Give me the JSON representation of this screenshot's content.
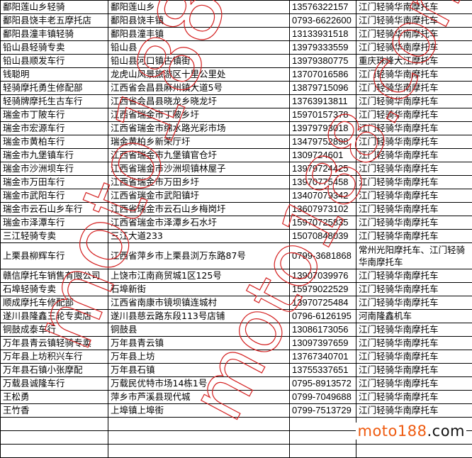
{
  "rows": [
    [
      "鄱阳莲山乡轻骑",
      "鄱阳莲山乡",
      "13576322157",
      "江门轻骑华南摩托车"
    ],
    [
      "鄱阳县饶丰老五摩托店",
      "鄱阳县饶丰镇",
      "0793-6622600",
      "江门轻骑华南摩托车"
    ],
    [
      "鄱阳县潼丰镇轻骑",
      "鄱阳县潼丰镇",
      "13133931518",
      "江门轻骑华南摩托车"
    ],
    [
      "铅山县轻骑专卖",
      "铅山县",
      "13979333559",
      "江门轻骑华南摩托车"
    ],
    [
      "铅山县顺发车行",
      "铅山县河口镇古镇街",
      "13979380775",
      "重庆珠峰大江摩托车"
    ],
    [
      "钱聪明",
      "龙虎山风景旅游区十里公里处",
      "13707016586",
      "江门轻骑华南摩托车"
    ],
    [
      "轻骑摩托勇生修配部",
      "江西省会昌县麻州镇大道5号",
      "13879715096",
      "江门轻骑华南摩托车"
    ],
    [
      "轻骑牌摩托生古车行",
      "江西省会昌县晓龙乡晓龙圩",
      "13763913811",
      "江门轻骑华南摩托车"
    ],
    [
      "瑞金市丁陂车行",
      "江西省瑞金市丁陂乡圩",
      "15970157378",
      "江门轻骑华南摩托车"
    ],
    [
      "瑞金市宏源车行",
      "江西省瑞金市绵水路光彩市场",
      "13979793018",
      "江门轻骑华南摩托车"
    ],
    [
      "瑞金市黄柏车行",
      "瑞金黄柏乡新荣厅圩",
      "13479752898",
      "江门轻骑华南摩托车"
    ],
    [
      "瑞金市九堡镇车行",
      "江西省瑞金市九堡镇官仓圩",
      "1309724601",
      "江门轻骑华南摩托车"
    ],
    [
      "瑞金市沙洲坝车行",
      "江西省瑞金市沙洲坝镇林屋子",
      "13979724425",
      "江门轻骑华南摩托车"
    ],
    [
      "瑞金市万田车行",
      "江西省瑞金市万田乡圩",
      "13970775458",
      "江门轻骑华南摩托车"
    ],
    [
      "瑞金市武阳车行",
      "江西省瑞金市武阳镇圩",
      "13407079342",
      "江门轻骑华南摩托车"
    ],
    [
      "瑞金市云石山乡车行",
      "江西省瑞金市云石山乡梅岗圩",
      "13607973102",
      "江门轻骑华南摩托车"
    ],
    [
      "瑞金市泽潭车行",
      "江西省瑞金市泽潭乡石水圩",
      "15970725835",
      "江门轻骑华南摩托车"
    ],
    [
      "三江轻骑专卖",
      "三江大道233",
      "15070848039",
      "江门轻骑华南摩托车"
    ],
    [
      "上栗县柳辉车行",
      "江西省萍乡市上栗县浏万东路87号",
      "0799-3681868",
      "常州光阳摩托车、江门轻骑华南摩托车"
    ],
    [
      "赣信摩托车销售有限公司",
      "上饶市江南商贸城1区125号",
      "13907039976",
      "江门轻骑华南摩托车"
    ],
    [
      "石埠轻骑专卖",
      "石埠新街",
      "15979022529",
      "江门轻骑华南摩托车"
    ],
    [
      "顺成摩托车修配部",
      "江西省南康市镜坝镇连城村",
      "13970725484",
      "江门轻骑华南摩托车"
    ],
    [
      "遂川县隆鑫三轮专卖店",
      "遂川县慈云路东段113号店铺",
      "0796-6126195",
      "河南隆鑫机车"
    ],
    [
      "铜鼓成泰车行",
      "铜鼓县",
      "13086173056",
      "江门轻骑华南摩托车"
    ],
    [
      "万年县青云镇轻骑专卖",
      "万年县青云镇",
      "13097397659",
      "江门轻骑华南摩托车"
    ],
    [
      "万年县上坊积兴车行",
      "万年县上坊",
      "13767340701",
      "江门轻骑华南摩托车"
    ],
    [
      "万年县石镇小张摩配",
      "万年县石镇",
      "13755337651",
      "江门轻骑华南摩托车"
    ],
    [
      "万载县诚隆车行",
      "万载民优特市场14栋1号",
      "0795-8913572",
      "江门轻骑华南摩托车"
    ],
    [
      "王松勇",
      "萍乡市芦溪县现代城",
      "0799-7049688",
      "江门轻骑华南摩托车"
    ],
    [
      "王竹香",
      "上埠镇上埠街",
      "0799-7513729",
      "江门轻骑华南摩托车"
    ],
    [
      "",
      "",
      "",
      ""
    ],
    [
      "",
      "",
      "",
      ""
    ],
    [
      "",
      "",
      "",
      ""
    ]
  ],
  "watermark": "moto188.com",
  "logo": {
    "part1": "moto188",
    "part2": ".com",
    "accent_color": "#ef5a0f"
  }
}
